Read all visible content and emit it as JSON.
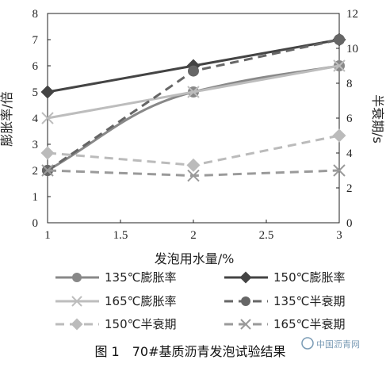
{
  "chart_data": {
    "type": "line",
    "x": [
      1,
      2,
      3
    ],
    "xlabel": "发泡用水量/%",
    "ylabel_left": "膨胀率/倍",
    "ylabel_right": "半衰期/s",
    "xlim": [
      1,
      3
    ],
    "ylim_left": [
      0,
      8
    ],
    "ylim_right": [
      0,
      12
    ],
    "xticks": [
      "1",
      "1.5",
      "2",
      "2.5",
      "3"
    ],
    "yticks_left": [
      "0",
      "1",
      "2",
      "3",
      "4",
      "5",
      "6",
      "7",
      "8"
    ],
    "yticks_right": [
      "0",
      "2",
      "4",
      "6",
      "8",
      "10",
      "12"
    ],
    "grid": false,
    "legend_position": "bottom",
    "series": [
      {
        "name": "135℃膨胀率",
        "axis": "left",
        "values": [
          2.0,
          5.0,
          6.0
        ],
        "color": "#888888",
        "dash": "solid",
        "marker": "circle"
      },
      {
        "name": "150℃膨胀率",
        "axis": "left",
        "values": [
          5.0,
          6.0,
          7.0
        ],
        "color": "#444444",
        "dash": "solid",
        "marker": "diamond"
      },
      {
        "name": "165℃膨胀率",
        "axis": "left",
        "values": [
          4.0,
          5.0,
          6.0
        ],
        "color": "#bdbdbd",
        "dash": "solid",
        "marker": "x"
      },
      {
        "name": "135℃半衰期",
        "axis": "right",
        "values": [
          3.0,
          8.7,
          10.5
        ],
        "color": "#666666",
        "dash": "dashed",
        "marker": "circle"
      },
      {
        "name": "150℃半衰期",
        "axis": "right",
        "values": [
          4.0,
          3.3,
          5.0
        ],
        "color": "#bbbbbb",
        "dash": "dashed",
        "marker": "diamond"
      },
      {
        "name": "165℃半衰期",
        "axis": "right",
        "values": [
          3.0,
          2.7,
          3.0
        ],
        "color": "#9a9a9a",
        "dash": "dashed",
        "marker": "x"
      }
    ],
    "caption": "图 1　70#基质沥青发泡试验结果",
    "watermark": "中国沥青网"
  }
}
